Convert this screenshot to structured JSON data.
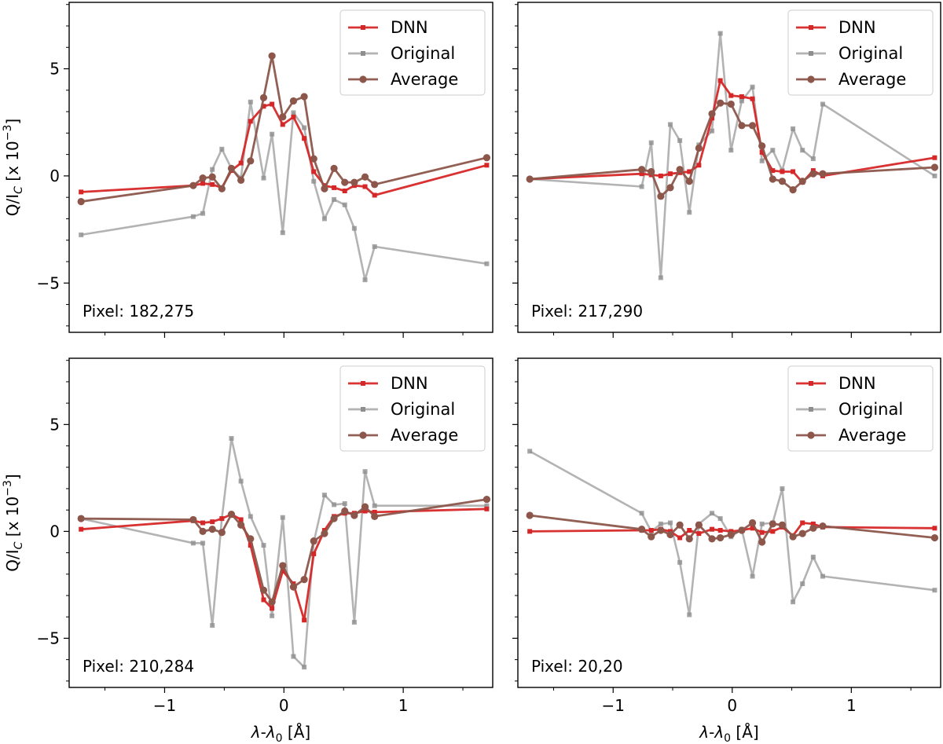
{
  "chart_data": [
    {
      "type": "line",
      "panel_label": "Pixel: 182,275",
      "ylabel": "Q/I_C [x 10^-3]",
      "xlabel": "λ-λ0 [Å]",
      "xlim": [
        -1.8,
        1.75
      ],
      "ylim": [
        -7.3,
        8.1
      ],
      "xticks": [
        -1,
        0,
        1
      ],
      "yticks": [
        -5,
        0,
        5
      ],
      "legend": [
        "DNN",
        "Original",
        "Average"
      ],
      "series": [
        {
          "name": "Original",
          "color": "#a6a6a6",
          "x": [
            -1.7,
            -0.76,
            -0.68,
            -0.6,
            -0.52,
            -0.44,
            -0.36,
            -0.28,
            -0.17,
            -0.1,
            -0.01,
            0.08,
            0.17,
            0.25,
            0.34,
            0.42,
            0.51,
            0.59,
            0.68,
            0.76,
            1.7
          ],
          "y": [
            -2.75,
            -1.9,
            -1.75,
            0.3,
            1.25,
            0.35,
            -0.1,
            3.45,
            -0.1,
            1.95,
            -2.65,
            2.95,
            2.25,
            -0.25,
            -2.0,
            -1.1,
            -1.35,
            -2.45,
            -4.85,
            -3.3,
            -4.1
          ]
        },
        {
          "name": "DNN",
          "color": "#d62728",
          "x": [
            -1.7,
            -0.76,
            -0.68,
            -0.6,
            -0.52,
            -0.44,
            -0.36,
            -0.28,
            -0.17,
            -0.1,
            -0.01,
            0.08,
            0.17,
            0.25,
            0.34,
            0.42,
            0.51,
            0.59,
            0.68,
            0.76,
            1.7
          ],
          "y": [
            -0.75,
            -0.45,
            -0.35,
            -0.4,
            -0.55,
            0.25,
            0.6,
            2.55,
            3.25,
            3.35,
            2.4,
            2.75,
            1.75,
            0.2,
            -0.45,
            -0.55,
            -0.7,
            -0.45,
            -0.5,
            -0.9,
            0.5
          ]
        },
        {
          "name": "Average",
          "color": "#8c564b",
          "x": [
            -1.7,
            -0.76,
            -0.68,
            -0.6,
            -0.52,
            -0.44,
            -0.36,
            -0.28,
            -0.17,
            -0.1,
            -0.01,
            0.08,
            0.17,
            0.25,
            0.34,
            0.42,
            0.51,
            0.59,
            0.68,
            0.76,
            1.7
          ],
          "y": [
            -1.2,
            -0.45,
            -0.1,
            -0.05,
            -0.6,
            0.35,
            -0.2,
            0.7,
            3.65,
            5.6,
            2.75,
            3.5,
            3.7,
            0.8,
            -0.6,
            0.35,
            -0.3,
            -0.3,
            -0.05,
            -0.4,
            0.85
          ]
        }
      ]
    },
    {
      "type": "line",
      "panel_label": "Pixel: 217,290",
      "ylabel": "",
      "xlabel": "",
      "xlim": [
        -1.8,
        1.75
      ],
      "ylim": [
        -7.3,
        8.1
      ],
      "xticks": [
        -1,
        0,
        1
      ],
      "yticks": [
        -5,
        0,
        5
      ],
      "legend": [
        "DNN",
        "Original",
        "Average"
      ],
      "series": [
        {
          "name": "Original",
          "color": "#a6a6a6",
          "x": [
            -1.7,
            -0.76,
            -0.68,
            -0.6,
            -0.52,
            -0.44,
            -0.36,
            -0.28,
            -0.17,
            -0.1,
            -0.01,
            0.08,
            0.17,
            0.25,
            0.34,
            0.42,
            0.51,
            0.59,
            0.68,
            0.76,
            1.7
          ],
          "y": [
            -0.15,
            -0.5,
            1.55,
            -4.75,
            2.4,
            1.65,
            -1.7,
            1.45,
            2.1,
            6.65,
            1.2,
            3.5,
            4.15,
            0.7,
            1.2,
            0.25,
            2.2,
            1.2,
            0.8,
            3.35,
            0.0
          ]
        },
        {
          "name": "DNN",
          "color": "#d62728",
          "x": [
            -1.7,
            -0.76,
            -0.68,
            -0.6,
            -0.52,
            -0.44,
            -0.36,
            -0.28,
            -0.17,
            -0.1,
            -0.01,
            0.08,
            0.17,
            0.25,
            0.34,
            0.42,
            0.51,
            0.59,
            0.68,
            0.76,
            1.7
          ],
          "y": [
            -0.15,
            0.1,
            0.05,
            0.0,
            0.1,
            0.15,
            0.2,
            0.5,
            2.7,
            4.45,
            3.75,
            3.7,
            3.6,
            1.1,
            0.25,
            0.2,
            0.2,
            -0.3,
            0.25,
            0.0,
            0.85
          ]
        },
        {
          "name": "Average",
          "color": "#8c564b",
          "x": [
            -1.7,
            -0.76,
            -0.68,
            -0.6,
            -0.52,
            -0.44,
            -0.36,
            -0.28,
            -0.17,
            -0.1,
            -0.01,
            0.08,
            0.17,
            0.25,
            0.34,
            0.42,
            0.51,
            0.59,
            0.68,
            0.76,
            1.7
          ],
          "y": [
            -0.15,
            0.3,
            0.2,
            -0.95,
            -0.55,
            0.3,
            -0.25,
            1.3,
            2.9,
            3.4,
            3.35,
            2.35,
            2.35,
            1.4,
            -0.15,
            -0.25,
            -0.65,
            -0.25,
            0.1,
            0.1,
            0.4
          ]
        }
      ]
    },
    {
      "type": "line",
      "panel_label": "Pixel: 210,284",
      "ylabel": "Q/I_C [x 10^-3]",
      "xlabel": "λ-λ0 [Å]",
      "xlim": [
        -1.8,
        1.75
      ],
      "ylim": [
        -7.3,
        8.1
      ],
      "xticks": [
        -1,
        0,
        1
      ],
      "yticks": [
        -5,
        0,
        5
      ],
      "legend": [
        "DNN",
        "Original",
        "Average"
      ],
      "series": [
        {
          "name": "Original",
          "color": "#a6a6a6",
          "x": [
            -1.7,
            -0.76,
            -0.68,
            -0.6,
            -0.52,
            -0.44,
            -0.36,
            -0.28,
            -0.17,
            -0.1,
            -0.01,
            0.08,
            0.17,
            0.25,
            0.34,
            0.42,
            0.51,
            0.59,
            0.68,
            0.76,
            1.7
          ],
          "y": [
            0.6,
            -0.55,
            -0.55,
            -4.4,
            0.6,
            4.35,
            2.35,
            0.7,
            -0.65,
            -3.95,
            0.65,
            -5.85,
            -6.35,
            -0.5,
            1.7,
            1.25,
            1.3,
            -4.25,
            2.8,
            1.2,
            1.2
          ]
        },
        {
          "name": "DNN",
          "color": "#d62728",
          "x": [
            -1.7,
            -0.76,
            -0.68,
            -0.6,
            -0.52,
            -0.44,
            -0.36,
            -0.28,
            -0.17,
            -0.1,
            -0.01,
            0.08,
            0.17,
            0.25,
            0.34,
            0.42,
            0.51,
            0.59,
            0.68,
            0.76,
            1.7
          ],
          "y": [
            0.1,
            0.5,
            0.4,
            0.45,
            0.6,
            0.8,
            0.55,
            -0.65,
            -3.2,
            -3.6,
            -1.85,
            -2.45,
            -4.15,
            -1.05,
            0.05,
            0.7,
            0.85,
            0.85,
            0.95,
            0.9,
            1.05
          ]
        },
        {
          "name": "Average",
          "color": "#8c564b",
          "x": [
            -1.7,
            -0.76,
            -0.68,
            -0.6,
            -0.52,
            -0.44,
            -0.36,
            -0.28,
            -0.17,
            -0.1,
            -0.01,
            0.08,
            0.17,
            0.25,
            0.34,
            0.42,
            0.51,
            0.59,
            0.68,
            0.76,
            1.7
          ],
          "y": [
            0.6,
            0.55,
            0.0,
            0.1,
            -0.05,
            0.8,
            0.3,
            -0.35,
            -2.75,
            -3.3,
            -1.6,
            -2.6,
            -2.25,
            -0.45,
            -0.1,
            0.6,
            0.95,
            0.75,
            1.15,
            0.7,
            1.5
          ]
        }
      ]
    },
    {
      "type": "line",
      "panel_label": "Pixel: 20,20",
      "ylabel": "",
      "xlabel": "λ-λ0 [Å]",
      "xlim": [
        -1.8,
        1.75
      ],
      "ylim": [
        -7.3,
        8.1
      ],
      "xticks": [
        -1,
        0,
        1
      ],
      "yticks": [
        -5,
        0,
        5
      ],
      "legend": [
        "DNN",
        "Original",
        "Average"
      ],
      "series": [
        {
          "name": "Original",
          "color": "#a6a6a6",
          "x": [
            -1.7,
            -0.76,
            -0.68,
            -0.6,
            -0.52,
            -0.44,
            -0.36,
            -0.28,
            -0.17,
            -0.1,
            -0.01,
            0.08,
            0.17,
            0.25,
            0.34,
            0.42,
            0.51,
            0.59,
            0.68,
            0.76,
            1.7
          ],
          "y": [
            3.75,
            0.85,
            0.0,
            0.35,
            0.4,
            -1.45,
            -3.9,
            0.35,
            0.85,
            0.6,
            -0.25,
            0.1,
            -2.1,
            0.35,
            0.4,
            2.0,
            -3.3,
            -2.45,
            -1.2,
            -2.1,
            -2.75
          ]
        },
        {
          "name": "DNN",
          "color": "#d62728",
          "x": [
            -1.7,
            -0.76,
            -0.68,
            -0.6,
            -0.52,
            -0.44,
            -0.36,
            -0.28,
            -0.17,
            -0.1,
            -0.01,
            0.08,
            0.17,
            0.25,
            0.34,
            0.42,
            0.51,
            0.59,
            0.68,
            0.76,
            1.7
          ],
          "y": [
            0.0,
            0.05,
            0.05,
            0.1,
            0.0,
            -0.3,
            0.05,
            -0.1,
            0.1,
            0.05,
            0.0,
            0.05,
            0.15,
            -0.05,
            0.0,
            0.2,
            -0.2,
            0.4,
            0.35,
            0.2,
            0.15
          ]
        },
        {
          "name": "Average",
          "color": "#8c564b",
          "x": [
            -1.7,
            -0.76,
            -0.68,
            -0.6,
            -0.52,
            -0.44,
            -0.36,
            -0.28,
            -0.17,
            -0.1,
            -0.01,
            0.08,
            0.17,
            0.25,
            0.34,
            0.42,
            0.51,
            0.59,
            0.68,
            0.76,
            1.7
          ],
          "y": [
            0.75,
            0.1,
            -0.25,
            0.05,
            -0.15,
            0.3,
            -0.35,
            0.3,
            -0.35,
            -0.3,
            -0.15,
            0.05,
            0.4,
            -0.5,
            0.35,
            0.3,
            -0.25,
            -0.1,
            0.15,
            0.25,
            -0.3
          ]
        }
      ]
    }
  ]
}
